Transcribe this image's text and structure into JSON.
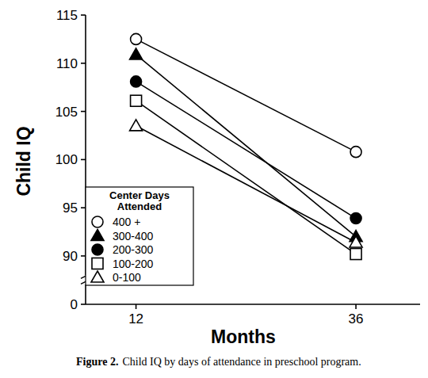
{
  "chart_data": {
    "type": "line",
    "x_label": "Months",
    "y_label": "Child IQ",
    "x": [
      12,
      36
    ],
    "xlim": [
      6.5,
      43
    ],
    "xticks": [
      12,
      36
    ],
    "ylim": [
      88,
      115
    ],
    "yticks": [
      90,
      95,
      100,
      105,
      110,
      115
    ],
    "axis_break": 0,
    "legend": "lower left",
    "legend_title": [
      "Center Days",
      "Attended"
    ],
    "caption": {
      "label": "Figure 2.",
      "text": "Child IQ by days of attendance in preschool program."
    },
    "series": [
      {
        "name": "400 +",
        "color": "#000000",
        "marker": "open-circle",
        "values": [
          112.5,
          100.8
        ]
      },
      {
        "name": "300-400",
        "color": "#000000",
        "marker": "filled-triangle",
        "values": [
          110.9,
          92.0
        ]
      },
      {
        "name": "200-300",
        "color": "#000000",
        "marker": "filled-circle",
        "values": [
          108.1,
          93.9
        ]
      },
      {
        "name": "100-200",
        "color": "#000000",
        "marker": "open-square",
        "values": [
          106.1,
          90.2
        ]
      },
      {
        "name": "0-100",
        "color": "#000000",
        "marker": "open-triangle",
        "values": [
          103.5,
          91.4
        ]
      }
    ]
  }
}
